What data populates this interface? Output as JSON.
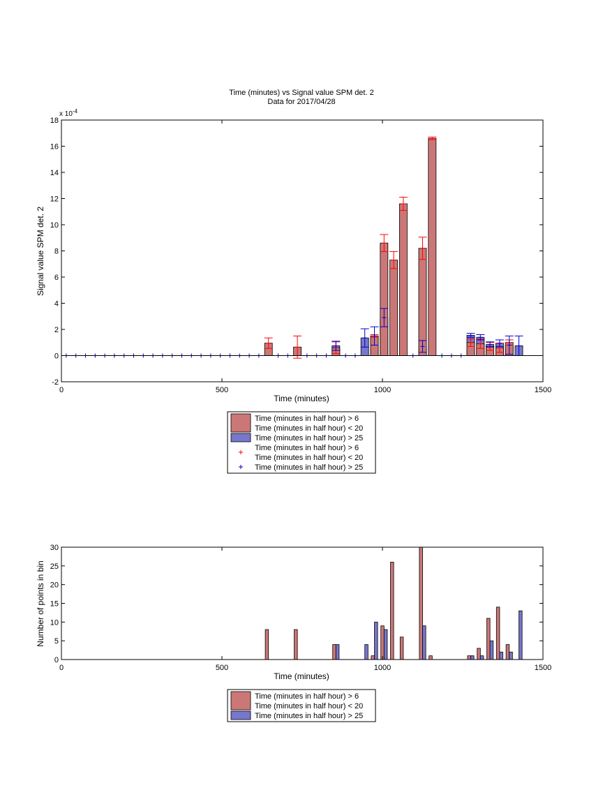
{
  "chart_data": [
    {
      "type": "bar",
      "title": "Time (minutes) vs Signal value SPM det. 2",
      "subtitle": "Data for 2017/04/28",
      "xlabel": "Time (minutes)",
      "ylabel": "Signal value SPM det. 2",
      "exponent_base": "x 10",
      "exponent_power": "-4",
      "xlim": [
        0,
        1500
      ],
      "ylim": [
        -2,
        18
      ],
      "xticks": [
        0,
        500,
        1000,
        1500
      ],
      "yticks": [
        -2,
        0,
        2,
        4,
        6,
        8,
        10,
        12,
        14,
        16,
        18
      ],
      "grid": false,
      "legend_position": "below",
      "colors": {
        "red_bar": "#cc7777",
        "blue_bar": "#7777cc",
        "red_marker": "#ff0000",
        "blue_marker": "#0000cc"
      },
      "legend": [
        {
          "kind": "bar",
          "color": "#cc7777",
          "lines": [
            "Time (minutes in half hour) > 6",
            "Time (minutes in half hour) < 20"
          ]
        },
        {
          "kind": "bar",
          "color": "#7777cc",
          "lines": [
            "Time (minutes in half hour) > 25"
          ]
        },
        {
          "kind": "marker",
          "color": "#ff0000",
          "lines": [
            "Time (minutes in half hour) > 6",
            "Time (minutes in half hour) < 20"
          ]
        },
        {
          "kind": "marker",
          "color": "#0000cc",
          "lines": [
            "Time (minutes in half hour) > 25"
          ]
        }
      ],
      "series": [
        {
          "color": "#cc7777",
          "error_color": "#ff0000",
          "points": [
            {
              "x": 645,
              "y": 0.95,
              "err": 0.4
            },
            {
              "x": 735,
              "y": 0.65,
              "err": 0.85
            },
            {
              "x": 855,
              "y": 0.6,
              "err": 0.45
            },
            {
              "x": 975,
              "y": 1.5,
              "err": 0.1
            },
            {
              "x": 1005,
              "y": 8.6,
              "err": 0.65
            },
            {
              "x": 1035,
              "y": 7.3,
              "err": 0.65
            },
            {
              "x": 1065,
              "y": 11.6,
              "err": 0.5
            },
            {
              "x": 1125,
              "y": 8.2,
              "err": 0.85
            },
            {
              "x": 1155,
              "y": 16.6,
              "err": 0.1
            },
            {
              "x": 1275,
              "y": 1.0,
              "err": 0.3
            },
            {
              "x": 1305,
              "y": 0.9,
              "err": 0.35
            },
            {
              "x": 1335,
              "y": 0.7,
              "err": 0.3
            },
            {
              "x": 1365,
              "y": 0.6,
              "err": 0.35
            },
            {
              "x": 1395,
              "y": 1.0,
              "err": 0.2
            }
          ]
        },
        {
          "color": "#7777cc",
          "error_color": "#0000cc",
          "points": [
            {
              "x": 855,
              "y": 0.75,
              "err": 0.35
            },
            {
              "x": 945,
              "y": 1.35,
              "err": 0.7
            },
            {
              "x": 975,
              "y": 1.5,
              "err": 0.7
            },
            {
              "x": 1005,
              "y": 2.9,
              "err": 0.7
            },
            {
              "x": 1125,
              "y": 0.7,
              "err": 0.45
            },
            {
              "x": 1275,
              "y": 1.55,
              "err": 0.15
            },
            {
              "x": 1305,
              "y": 1.4,
              "err": 0.2
            },
            {
              "x": 1335,
              "y": 0.85,
              "err": 0.2
            },
            {
              "x": 1365,
              "y": 0.95,
              "err": 0.25
            },
            {
              "x": 1395,
              "y": 0.8,
              "err": 0.7
            },
            {
              "x": 1425,
              "y": 0.75,
              "err": 0.75
            }
          ]
        }
      ],
      "zero_markers": {
        "color": "#0000cc",
        "x": [
          15,
          45,
          75,
          105,
          135,
          165,
          195,
          225,
          255,
          285,
          315,
          345,
          375,
          405,
          435,
          465,
          495,
          525,
          555,
          585,
          615,
          675,
          705,
          765,
          795,
          825,
          885,
          915,
          1095,
          1185,
          1215,
          1245
        ]
      }
    },
    {
      "type": "bar",
      "xlabel": "Time (minutes)",
      "ylabel": "Number of points in bin",
      "xlim": [
        0,
        1500
      ],
      "ylim": [
        0,
        30
      ],
      "xticks": [
        0,
        500,
        1000,
        1500
      ],
      "yticks": [
        0,
        5,
        10,
        15,
        20,
        25,
        30
      ],
      "grid": false,
      "legend_position": "below",
      "legend": [
        {
          "kind": "bar",
          "color": "#cc7777",
          "lines": [
            "Time (minutes in half hour) > 6",
            "Time (minutes in half hour) < 20"
          ]
        },
        {
          "kind": "bar",
          "color": "#7777cc",
          "lines": [
            "Time (minutes in half hour) > 25"
          ]
        }
      ],
      "series": [
        {
          "color": "#cc7777",
          "points": [
            {
              "x": 640,
              "y": 8
            },
            {
              "x": 730,
              "y": 8
            },
            {
              "x": 850,
              "y": 4
            },
            {
              "x": 970,
              "y": 1
            },
            {
              "x": 1000,
              "y": 9
            },
            {
              "x": 1030,
              "y": 26
            },
            {
              "x": 1060,
              "y": 6
            },
            {
              "x": 1120,
              "y": 30
            },
            {
              "x": 1150,
              "y": 1
            },
            {
              "x": 1270,
              "y": 1
            },
            {
              "x": 1300,
              "y": 3
            },
            {
              "x": 1330,
              "y": 11
            },
            {
              "x": 1360,
              "y": 14
            },
            {
              "x": 1390,
              "y": 4
            }
          ]
        },
        {
          "color": "#7777cc",
          "points": [
            {
              "x": 860,
              "y": 4
            },
            {
              "x": 950,
              "y": 4
            },
            {
              "x": 980,
              "y": 10
            },
            {
              "x": 1010,
              "y": 8
            },
            {
              "x": 1130,
              "y": 9
            },
            {
              "x": 1280,
              "y": 1
            },
            {
              "x": 1310,
              "y": 1
            },
            {
              "x": 1340,
              "y": 5
            },
            {
              "x": 1370,
              "y": 2
            },
            {
              "x": 1400,
              "y": 2
            },
            {
              "x": 1430,
              "y": 13
            }
          ]
        }
      ]
    }
  ]
}
